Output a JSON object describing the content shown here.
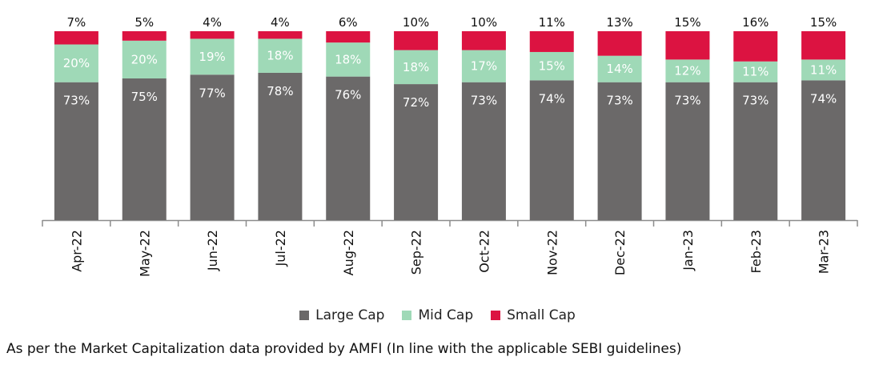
{
  "chart_data": {
    "type": "bar",
    "stacked": true,
    "categories": [
      "Apr-22",
      "May-22",
      "Jun-22",
      "Jul-22",
      "Aug-22",
      "Sep-22",
      "Oct-22",
      "Nov-22",
      "Dec-22",
      "Jan-23",
      "Feb-23",
      "Mar-23"
    ],
    "series": [
      {
        "name": "Large Cap",
        "color": "#6b6969",
        "values": [
          73,
          75,
          77,
          78,
          76,
          72,
          73,
          74,
          73,
          73,
          73,
          74
        ]
      },
      {
        "name": "Mid Cap",
        "color": "#9fd9b7",
        "values": [
          20,
          20,
          19,
          18,
          18,
          18,
          17,
          15,
          14,
          12,
          11,
          11
        ]
      },
      {
        "name": "Small Cap",
        "color": "#dc1341",
        "values": [
          7,
          5,
          4,
          4,
          6,
          10,
          10,
          11,
          13,
          15,
          16,
          15
        ]
      }
    ],
    "value_format": "{v}%",
    "ylim": [
      0,
      100
    ],
    "grid": false,
    "legend_position": "bottom"
  },
  "legend": {
    "items": [
      {
        "label": "Large Cap",
        "color": "#6b6969"
      },
      {
        "label": "Mid Cap",
        "color": "#9fd9b7"
      },
      {
        "label": "Small Cap",
        "color": "#dc1341"
      }
    ]
  },
  "footnote": "As per the Market Capitalization data provided by AMFI (In line with the applicable SEBI guidelines)"
}
